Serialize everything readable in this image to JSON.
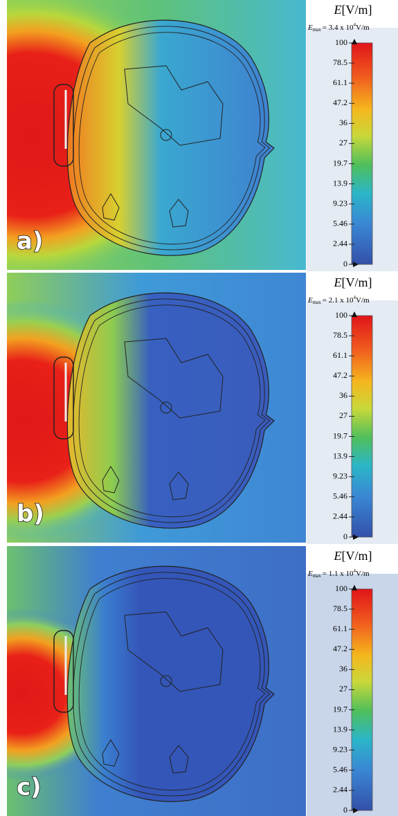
{
  "panels": [
    {
      "label": "a)",
      "legend_title": {
        "symbol": "E",
        "unit": "[V/m]"
      },
      "emax": {
        "symbol": "E",
        "subscript": "max",
        "text": "= 3.4 x 10",
        "exponent": "4",
        "unit": "V/m"
      },
      "colorbar_ticks": [
        "100",
        "78.5",
        "61.1",
        "47.2",
        "36",
        "27",
        "19.7",
        "13.9",
        "9.23",
        "5.46",
        "2.44",
        "0"
      ]
    },
    {
      "label": "b)",
      "legend_title": {
        "symbol": "E",
        "unit": "[V/m]"
      },
      "emax": {
        "symbol": "E",
        "subscript": "max",
        "text": "= 2.1 x 10",
        "exponent": "4",
        "unit": "V/m"
      },
      "colorbar_ticks": [
        "100",
        "78.5",
        "61.1",
        "47.2",
        "36",
        "27",
        "19.7",
        "13.9",
        "9.23",
        "5.46",
        "2.44",
        "0"
      ]
    },
    {
      "label": "c)",
      "legend_title": {
        "symbol": "E",
        "unit": "[V/m]"
      },
      "emax": {
        "symbol": "E",
        "subscript": "max",
        "text": "= 1.1 x 10",
        "exponent": "4",
        "unit": "V/m"
      },
      "colorbar_ticks": [
        "100",
        "78.5",
        "61.1",
        "47.2",
        "36",
        "27",
        "19.7",
        "13.9",
        "9.23",
        "5.46",
        "2.44",
        "0"
      ]
    }
  ]
}
